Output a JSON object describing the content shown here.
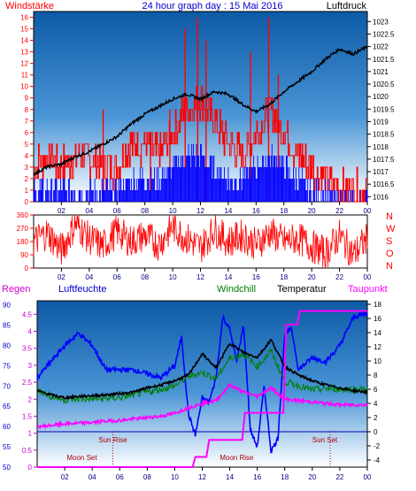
{
  "header": {
    "left_title": "Windstärke",
    "center_title": "24 hour graph day : 15 Mai 2016",
    "right_title": "Luftdruck"
  },
  "colors": {
    "wind_speed": "#ff0000",
    "wind_gust": "#0000ff",
    "pressure": "#000000",
    "wind_direction": "#ff0000",
    "rain": "#0000cc",
    "humidity": "#0000ff",
    "windchill": "#008000",
    "temperature": "#000000",
    "dewpoint": "#ff00ff",
    "plot_top": "#0d5aa6",
    "plot_bottom": "#ffffff"
  },
  "time_ticks": [
    "02",
    "04",
    "06",
    "08",
    "10",
    "12",
    "14",
    "16",
    "18",
    "20",
    "22",
    "00"
  ],
  "compass_labels": [
    "N",
    "W",
    "S",
    "O",
    "N"
  ],
  "legend": {
    "rain": "Regen",
    "humidity": "Luftfeuchte",
    "windchill": "Windchill",
    "temperature": "Temperatur",
    "dewpoint": "Taupunkt"
  },
  "annotations": {
    "sun_rise": "Sun Rise",
    "sun_set": "Sun Set",
    "moon_set": "Moon Set",
    "moon_rise": "Moon Rise"
  },
  "chart_data": [
    {
      "type": "line",
      "name": "wind-and-pressure",
      "x_unit": "hour",
      "xlim": [
        0,
        24
      ],
      "ylim_left": [
        0,
        16.5
      ],
      "y_ticks_left": [
        0,
        1,
        2,
        3,
        4,
        5,
        6,
        7,
        8,
        9,
        10,
        11,
        12,
        13,
        14,
        15,
        16
      ],
      "ylim_right": [
        1015.8,
        1023.4
      ],
      "y_ticks_right": [
        1016,
        1016.5,
        1017,
        1017.5,
        1018,
        1018.5,
        1019,
        1019.5,
        1020,
        1020.5,
        1021,
        1021.5,
        1022,
        1022.5,
        1023
      ],
      "wind_speed_levels": {
        "x": [
          0,
          1,
          2,
          3,
          4,
          5,
          6,
          7,
          8,
          9,
          10,
          11,
          12,
          13,
          14,
          15,
          16,
          17,
          18,
          19,
          20,
          21,
          22,
          23,
          24
        ],
        "y": [
          3,
          4,
          3,
          4,
          4,
          3,
          3,
          5,
          5,
          4,
          6,
          8,
          9,
          7,
          5,
          4,
          6,
          8,
          6,
          4,
          3,
          2,
          1,
          1,
          1
        ]
      },
      "wind_speed_peaks": {
        "x": [
          5.0,
          8.4,
          9.8,
          10.9,
          11.8,
          12.4,
          15.6,
          16.9,
          17.6
        ],
        "y": [
          8,
          6,
          8,
          15,
          16,
          14,
          13,
          16,
          11
        ]
      },
      "wind_gust_levels": {
        "x": [
          0,
          1,
          2,
          3,
          4,
          5,
          6,
          7,
          8,
          9,
          10,
          11,
          12,
          13,
          14,
          15,
          16,
          17,
          18,
          19,
          20,
          21,
          22,
          23,
          24
        ],
        "y": [
          1,
          1,
          1,
          1,
          1,
          1,
          1,
          2,
          2,
          2,
          3,
          4,
          4,
          3,
          2,
          2,
          3,
          4,
          3,
          2,
          1,
          1,
          0,
          0,
          0
        ]
      },
      "pressure": {
        "x": [
          0,
          1,
          2,
          3,
          4,
          5,
          6,
          7,
          8,
          9,
          10,
          11,
          12,
          13,
          14,
          15,
          16,
          17,
          18,
          19,
          20,
          21,
          22,
          23,
          24
        ],
        "y": [
          1016.9,
          1017.2,
          1017.3,
          1017.6,
          1017.8,
          1018.1,
          1018.4,
          1018.9,
          1019.3,
          1019.6,
          1019.9,
          1020.1,
          1019.9,
          1020.2,
          1020.1,
          1019.7,
          1019.4,
          1019.7,
          1020.2,
          1020.6,
          1021.0,
          1021.5,
          1021.9,
          1021.7,
          1022.0
        ]
      }
    },
    {
      "type": "line",
      "name": "wind-direction",
      "x_unit": "hour",
      "xlim": [
        0,
        24
      ],
      "ylim": [
        0,
        360
      ],
      "y_ticks": [
        0,
        90,
        180,
        270,
        360
      ],
      "direction": {
        "x": [
          0,
          1,
          2,
          3,
          4,
          5,
          6,
          7,
          8,
          9,
          10,
          11,
          12,
          13,
          14,
          15,
          16,
          17,
          18,
          19,
          20,
          21,
          22,
          23,
          24
        ],
        "y": [
          180,
          240,
          120,
          300,
          200,
          150,
          250,
          180,
          220,
          160,
          280,
          200,
          140,
          260,
          180,
          220,
          160,
          240,
          180,
          200,
          150,
          100,
          220,
          90,
          200
        ]
      }
    },
    {
      "type": "line",
      "name": "rain-humidity-temperature",
      "x_unit": "hour",
      "xlim": [
        0,
        24
      ],
      "ylim_rain": [
        0,
        4.9
      ],
      "y_ticks_rain": [
        0,
        0.5,
        1,
        1.5,
        2,
        2.5,
        3,
        3.5,
        4,
        4.5
      ],
      "ylim_humidity": [
        50,
        91
      ],
      "y_ticks_humidity": [
        50,
        55,
        60,
        65,
        70,
        75,
        80,
        85,
        90
      ],
      "ylim_temperature": [
        -5,
        18.5
      ],
      "y_ticks_temperature": [
        -4,
        -2,
        0,
        2,
        4,
        6,
        8,
        10,
        12,
        14,
        16,
        18
      ],
      "rain": {
        "x": [
          0,
          11.3,
          11.5,
          12.3,
          12.5,
          14.9,
          15.1,
          17.9,
          18.1,
          18.9,
          19.1,
          24
        ],
        "y": [
          0,
          0,
          0.3,
          0.3,
          0.8,
          0.8,
          1.6,
          1.6,
          4.2,
          4.2,
          4.6,
          4.6
        ]
      },
      "humidity": {
        "x": [
          0,
          1,
          2,
          3,
          4,
          5,
          6,
          7,
          8,
          9,
          10,
          10.5,
          11,
          11.5,
          12,
          12.5,
          13,
          13.5,
          14,
          14.5,
          15,
          15.5,
          16,
          16.5,
          17,
          17.5,
          18,
          18.5,
          19,
          20,
          21,
          22,
          23,
          24
        ],
        "y": [
          72,
          76,
          80,
          83,
          80,
          74,
          74,
          74,
          73,
          72,
          75,
          82,
          63,
          58,
          67,
          66,
          72,
          87,
          84,
          76,
          85,
          59,
          55,
          70,
          54,
          57,
          83,
          84,
          74,
          77,
          76,
          80,
          87,
          88
        ]
      },
      "windchill": {
        "x": [
          0,
          1,
          2,
          3,
          4,
          5,
          6,
          7,
          8,
          9,
          10,
          11,
          12,
          13,
          14,
          15,
          16,
          17,
          18,
          19,
          20,
          21,
          22,
          23,
          24
        ],
        "y": [
          6.0,
          5.0,
          4.5,
          4.6,
          4.6,
          4.7,
          4.8,
          5.2,
          5.6,
          6.0,
          6.5,
          7.8,
          8.4,
          7.5,
          10.4,
          11.0,
          9.2,
          11.4,
          7.1,
          6.5,
          5.9,
          6.1,
          6.0,
          6.0,
          6.0
        ]
      },
      "temperature": {
        "x": [
          0,
          1,
          2,
          3,
          4,
          5,
          6,
          7,
          8,
          9,
          10,
          11,
          12,
          13,
          14,
          15,
          16,
          17,
          18,
          19,
          20,
          21,
          22,
          23,
          24
        ],
        "y": [
          5.8,
          5.2,
          4.8,
          5.0,
          5.1,
          5.2,
          5.4,
          5.6,
          6.2,
          6.6,
          7.2,
          8.0,
          11.0,
          9.0,
          12.5,
          11.2,
          10.5,
          13.0,
          9.2,
          8.0,
          7.2,
          6.6,
          6.2,
          5.8,
          5.6
        ]
      },
      "dewpoint": {
        "x": [
          0,
          1,
          2,
          3,
          4,
          5,
          6,
          7,
          8,
          9,
          10,
          11,
          12,
          13,
          14,
          15,
          16,
          17,
          18,
          19,
          20,
          21,
          22,
          23,
          24
        ],
        "y": [
          0.7,
          0.9,
          1.1,
          1.2,
          1.3,
          1.5,
          1.6,
          1.8,
          2.0,
          2.2,
          2.6,
          3.4,
          4.0,
          4.4,
          6.6,
          5.6,
          5.0,
          6.2,
          4.6,
          4.4,
          4.2,
          4.0,
          3.8,
          3.8,
          3.8
        ]
      },
      "sun_rise_hour": 5.5,
      "sun_set_hour": 21.3,
      "moon_set_hour": 5.5,
      "moon_rise_hour": 14.5
    }
  ]
}
